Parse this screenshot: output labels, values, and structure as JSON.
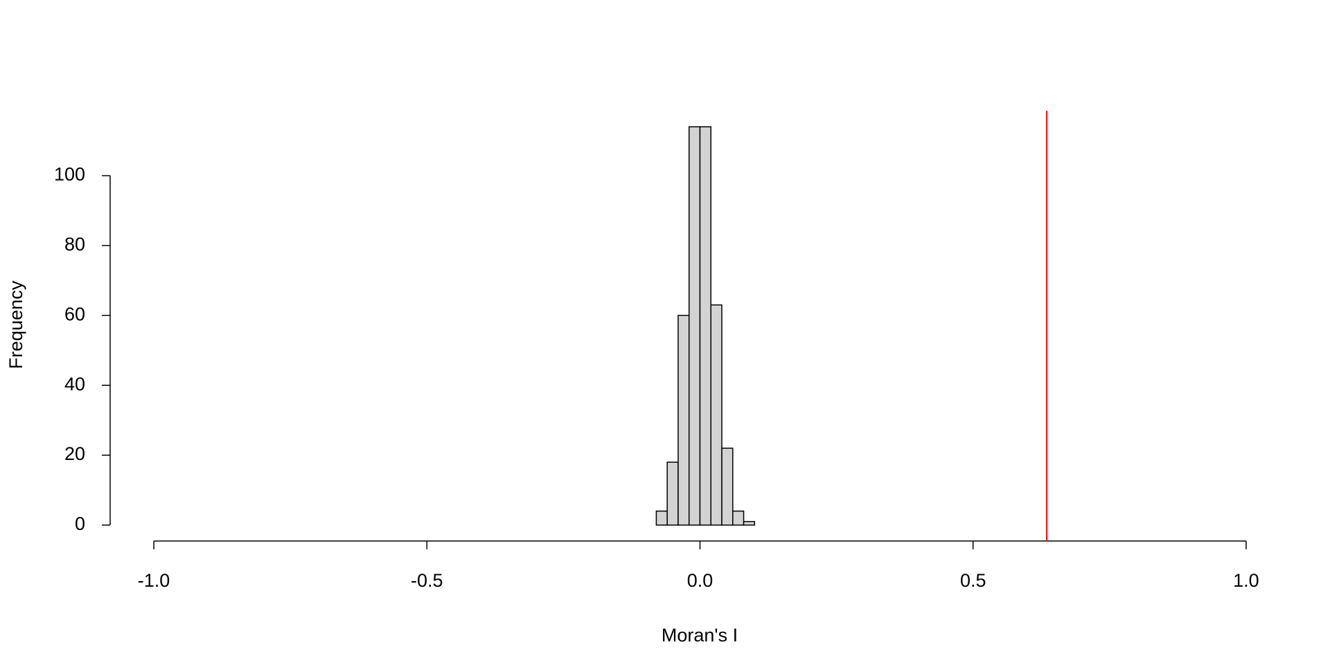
{
  "chart_data": {
    "type": "histogram",
    "x_label": "Moran's I",
    "y_label": "Frequency",
    "bins": [
      -0.08,
      -0.06,
      -0.04,
      -0.02,
      0,
      0.02,
      0.04,
      0.06,
      0.08,
      0.1
    ],
    "counts": [
      4,
      18,
      60,
      114,
      114,
      63,
      22,
      4,
      1
    ],
    "color": "#d3d3d3",
    "edge_color": "#000000",
    "xlim": [
      -1.08,
      1.08
    ],
    "ylim": [
      -4.56,
      118.56
    ],
    "xticks": [
      {
        "value": -1,
        "label": "-1.0"
      },
      {
        "value": -0.5,
        "label": "-0.5"
      },
      {
        "value": 0,
        "label": "0.0"
      },
      {
        "value": 0.5,
        "label": "0.5"
      },
      {
        "value": 1,
        "label": "1.0"
      }
    ],
    "yticks": [
      0,
      20,
      40,
      60,
      80,
      100
    ],
    "vline": {
      "value": 0.635,
      "color": "#ff0000"
    }
  }
}
